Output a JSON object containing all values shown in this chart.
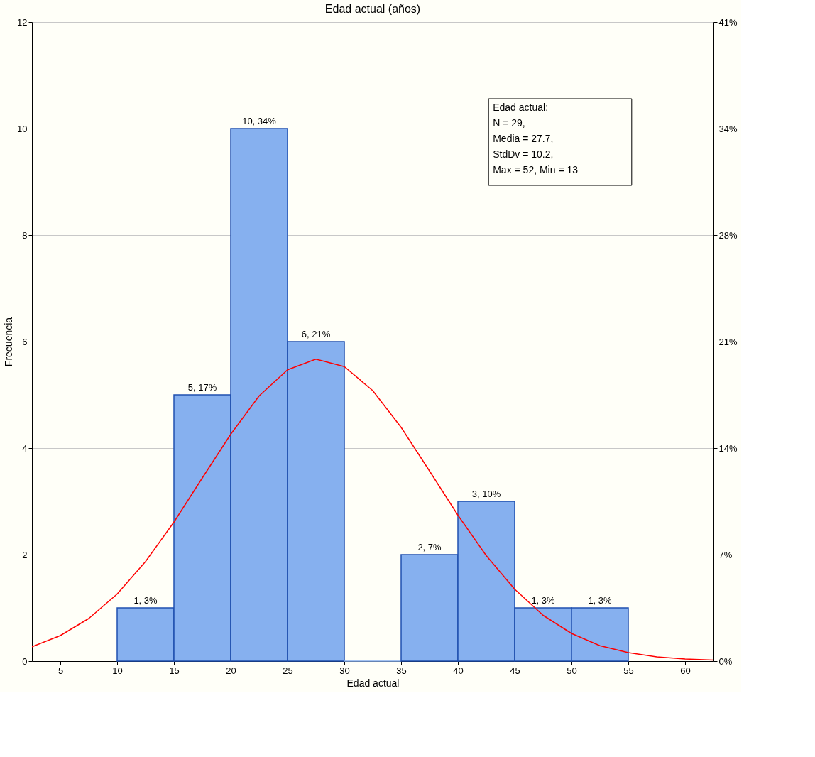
{
  "chart_data": {
    "type": "histogram",
    "title": "Edad actual (años)",
    "xlabel": "Edad actual",
    "ylabel": "Frecuencia",
    "bins": [
      10,
      15,
      20,
      25,
      30,
      35,
      40,
      45,
      50,
      55
    ],
    "values": [
      1,
      5,
      10,
      6,
      0,
      2,
      3,
      1,
      1
    ],
    "value_labels": [
      "1, 3%",
      "5, 17%",
      "10, 34%",
      "6, 21%",
      null,
      "2, 7%",
      "3, 10%",
      "1, 3%",
      "1, 3%"
    ],
    "color": "#86b0ef",
    "series": [
      {
        "type": "line",
        "color": "#ff0000",
        "x": [
          2.5,
          5,
          7.5,
          10,
          12.5,
          15,
          17.5,
          20,
          22.5,
          25,
          27.5,
          30,
          32.5,
          35,
          37.5,
          40,
          42.5,
          45,
          47.5,
          50,
          52.5,
          55,
          57.5,
          60,
          62.5
        ],
        "values": [
          0.27,
          0.48,
          0.8,
          1.26,
          1.87,
          2.61,
          3.44,
          4.26,
          4.98,
          5.47,
          5.67,
          5.53,
          5.08,
          4.39,
          3.57,
          2.74,
          1.98,
          1.35,
          0.86,
          0.52,
          0.29,
          0.16,
          0.08,
          0.04,
          0.02
        ]
      }
    ],
    "xlim": [
      2.5,
      62.5
    ],
    "xticks": [
      5,
      10,
      15,
      20,
      25,
      30,
      35,
      40,
      45,
      50,
      55,
      60
    ],
    "ylim": [
      0,
      12
    ],
    "yticks": [
      0,
      2,
      4,
      6,
      8,
      10,
      12
    ],
    "y2lim": [
      0,
      41.4
    ],
    "y2ticks": [
      {
        "value": 0,
        "label": "0%"
      },
      {
        "value": 6.9,
        "label": "7%"
      },
      {
        "value": 13.8,
        "label": "14%"
      },
      {
        "value": 20.7,
        "label": "21%"
      },
      {
        "value": 27.6,
        "label": "28%"
      },
      {
        "value": 34.5,
        "label": "34%"
      },
      {
        "value": 41.4,
        "label": "41%"
      }
    ],
    "annotations": [
      "Edad actual:\nN = 29,\nMedia = 27.7,\nStdDv = 10.2,\nMax = 52, Min = 13"
    ],
    "grid": "y"
  }
}
